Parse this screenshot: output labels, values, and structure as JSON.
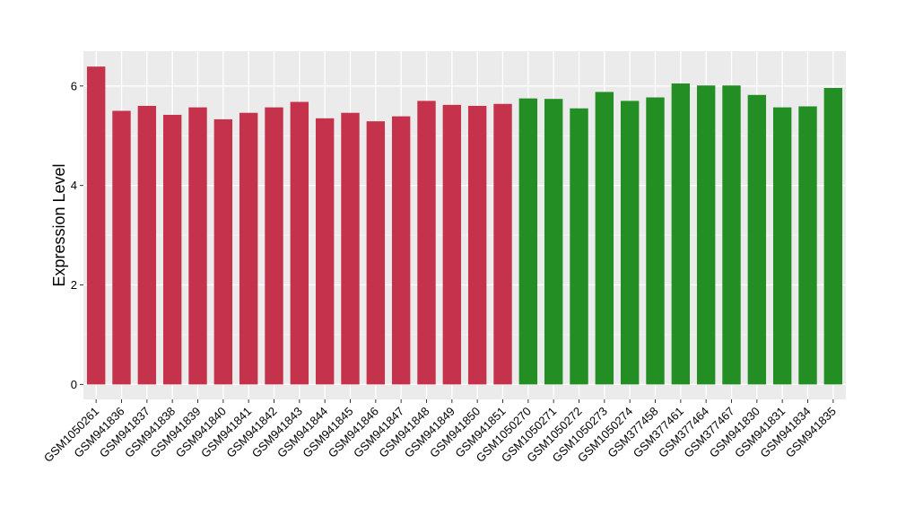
{
  "chart_data": {
    "type": "bar",
    "title": "",
    "xlabel": "",
    "ylabel": "Expression Level",
    "ylim": [
      -0.3,
      6.7
    ],
    "yticks": [
      0,
      2,
      4,
      6
    ],
    "grid": true,
    "legend": "none",
    "categories": [
      "GSM1050261",
      "GSM941836",
      "GSM941837",
      "GSM941838",
      "GSM941839",
      "GSM941840",
      "GSM941841",
      "GSM941842",
      "GSM941843",
      "GSM941844",
      "GSM941845",
      "GSM941846",
      "GSM941847",
      "GSM941848",
      "GSM941849",
      "GSM941850",
      "GSM941851",
      "GSM1050270",
      "GSM1050271",
      "GSM1050272",
      "GSM1050273",
      "GSM1050274",
      "GSM377458",
      "GSM377461",
      "GSM377464",
      "GSM377467",
      "GSM941830",
      "GSM941831",
      "GSM941834",
      "GSM941835"
    ],
    "values": [
      6.39,
      5.5,
      5.6,
      5.42,
      5.57,
      5.33,
      5.46,
      5.57,
      5.68,
      5.35,
      5.46,
      5.29,
      5.39,
      5.7,
      5.62,
      5.6,
      5.64,
      5.75,
      5.74,
      5.55,
      5.88,
      5.7,
      5.77,
      6.05,
      6.01,
      6.01,
      5.82,
      5.57,
      5.59,
      5.96
    ],
    "group_sizes": [
      17,
      13
    ],
    "colors": {
      "group_a": "#c5324b",
      "group_b": "#238e23",
      "panel_bg": "#ebebeb",
      "grid_major": "#ffffff",
      "grid_minor": "#f5f5f5"
    }
  }
}
